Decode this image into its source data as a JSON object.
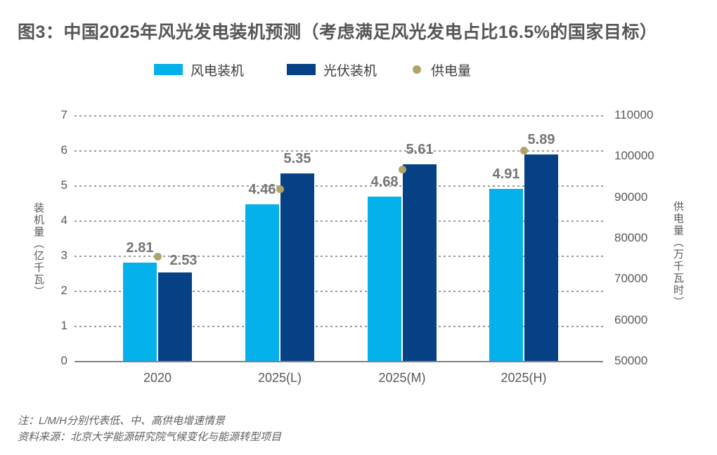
{
  "title": "图3：中国2025年风光发电装机预测（考虑满足风光发电占比16.5%的国家目标）",
  "legend": {
    "items": [
      {
        "label": "风电装机",
        "color": "#05b1ea",
        "shape": "square"
      },
      {
        "label": "光伏装机",
        "color": "#064186",
        "shape": "square"
      },
      {
        "label": "供电量",
        "color": "#b2a36b",
        "shape": "dot"
      }
    ]
  },
  "chart_data": {
    "type": "bar",
    "categories": [
      "2020",
      "2025(L)",
      "2025(M)",
      "2025(H)"
    ],
    "series": [
      {
        "name": "风电装机",
        "type": "bar",
        "axis": "left",
        "color": "#05b1ea",
        "values": [
          2.81,
          4.46,
          4.68,
          4.91
        ]
      },
      {
        "name": "光伏装机",
        "type": "bar",
        "axis": "left",
        "color": "#064186",
        "values": [
          2.53,
          5.35,
          5.61,
          5.89
        ]
      },
      {
        "name": "供电量",
        "type": "scatter",
        "axis": "right",
        "color": "#b2a36b",
        "values": [
          75500,
          92000,
          96800,
          101500
        ],
        "note": "values estimated from dot positions; no data labels shown in figure"
      }
    ],
    "left_axis": {
      "title": "装机量（亿千瓦）",
      "range": [
        0,
        7
      ],
      "ticks": [
        7,
        6,
        5,
        4,
        3,
        2,
        1,
        0
      ]
    },
    "right_axis": {
      "title": "供电量（万千瓦时）",
      "range": [
        50000,
        110000
      ],
      "ticks": [
        110000,
        100000,
        90000,
        80000,
        70000,
        60000,
        50000
      ]
    },
    "grid": "horizontal-dashed",
    "legend_position": "top",
    "bar_value_labels": true
  },
  "footnotes": {
    "note": "注：L/M/H分别代表低、中、高供电增速情景",
    "source": "资料来源：北京大学能源研究院气候变化与能源转型项目"
  }
}
